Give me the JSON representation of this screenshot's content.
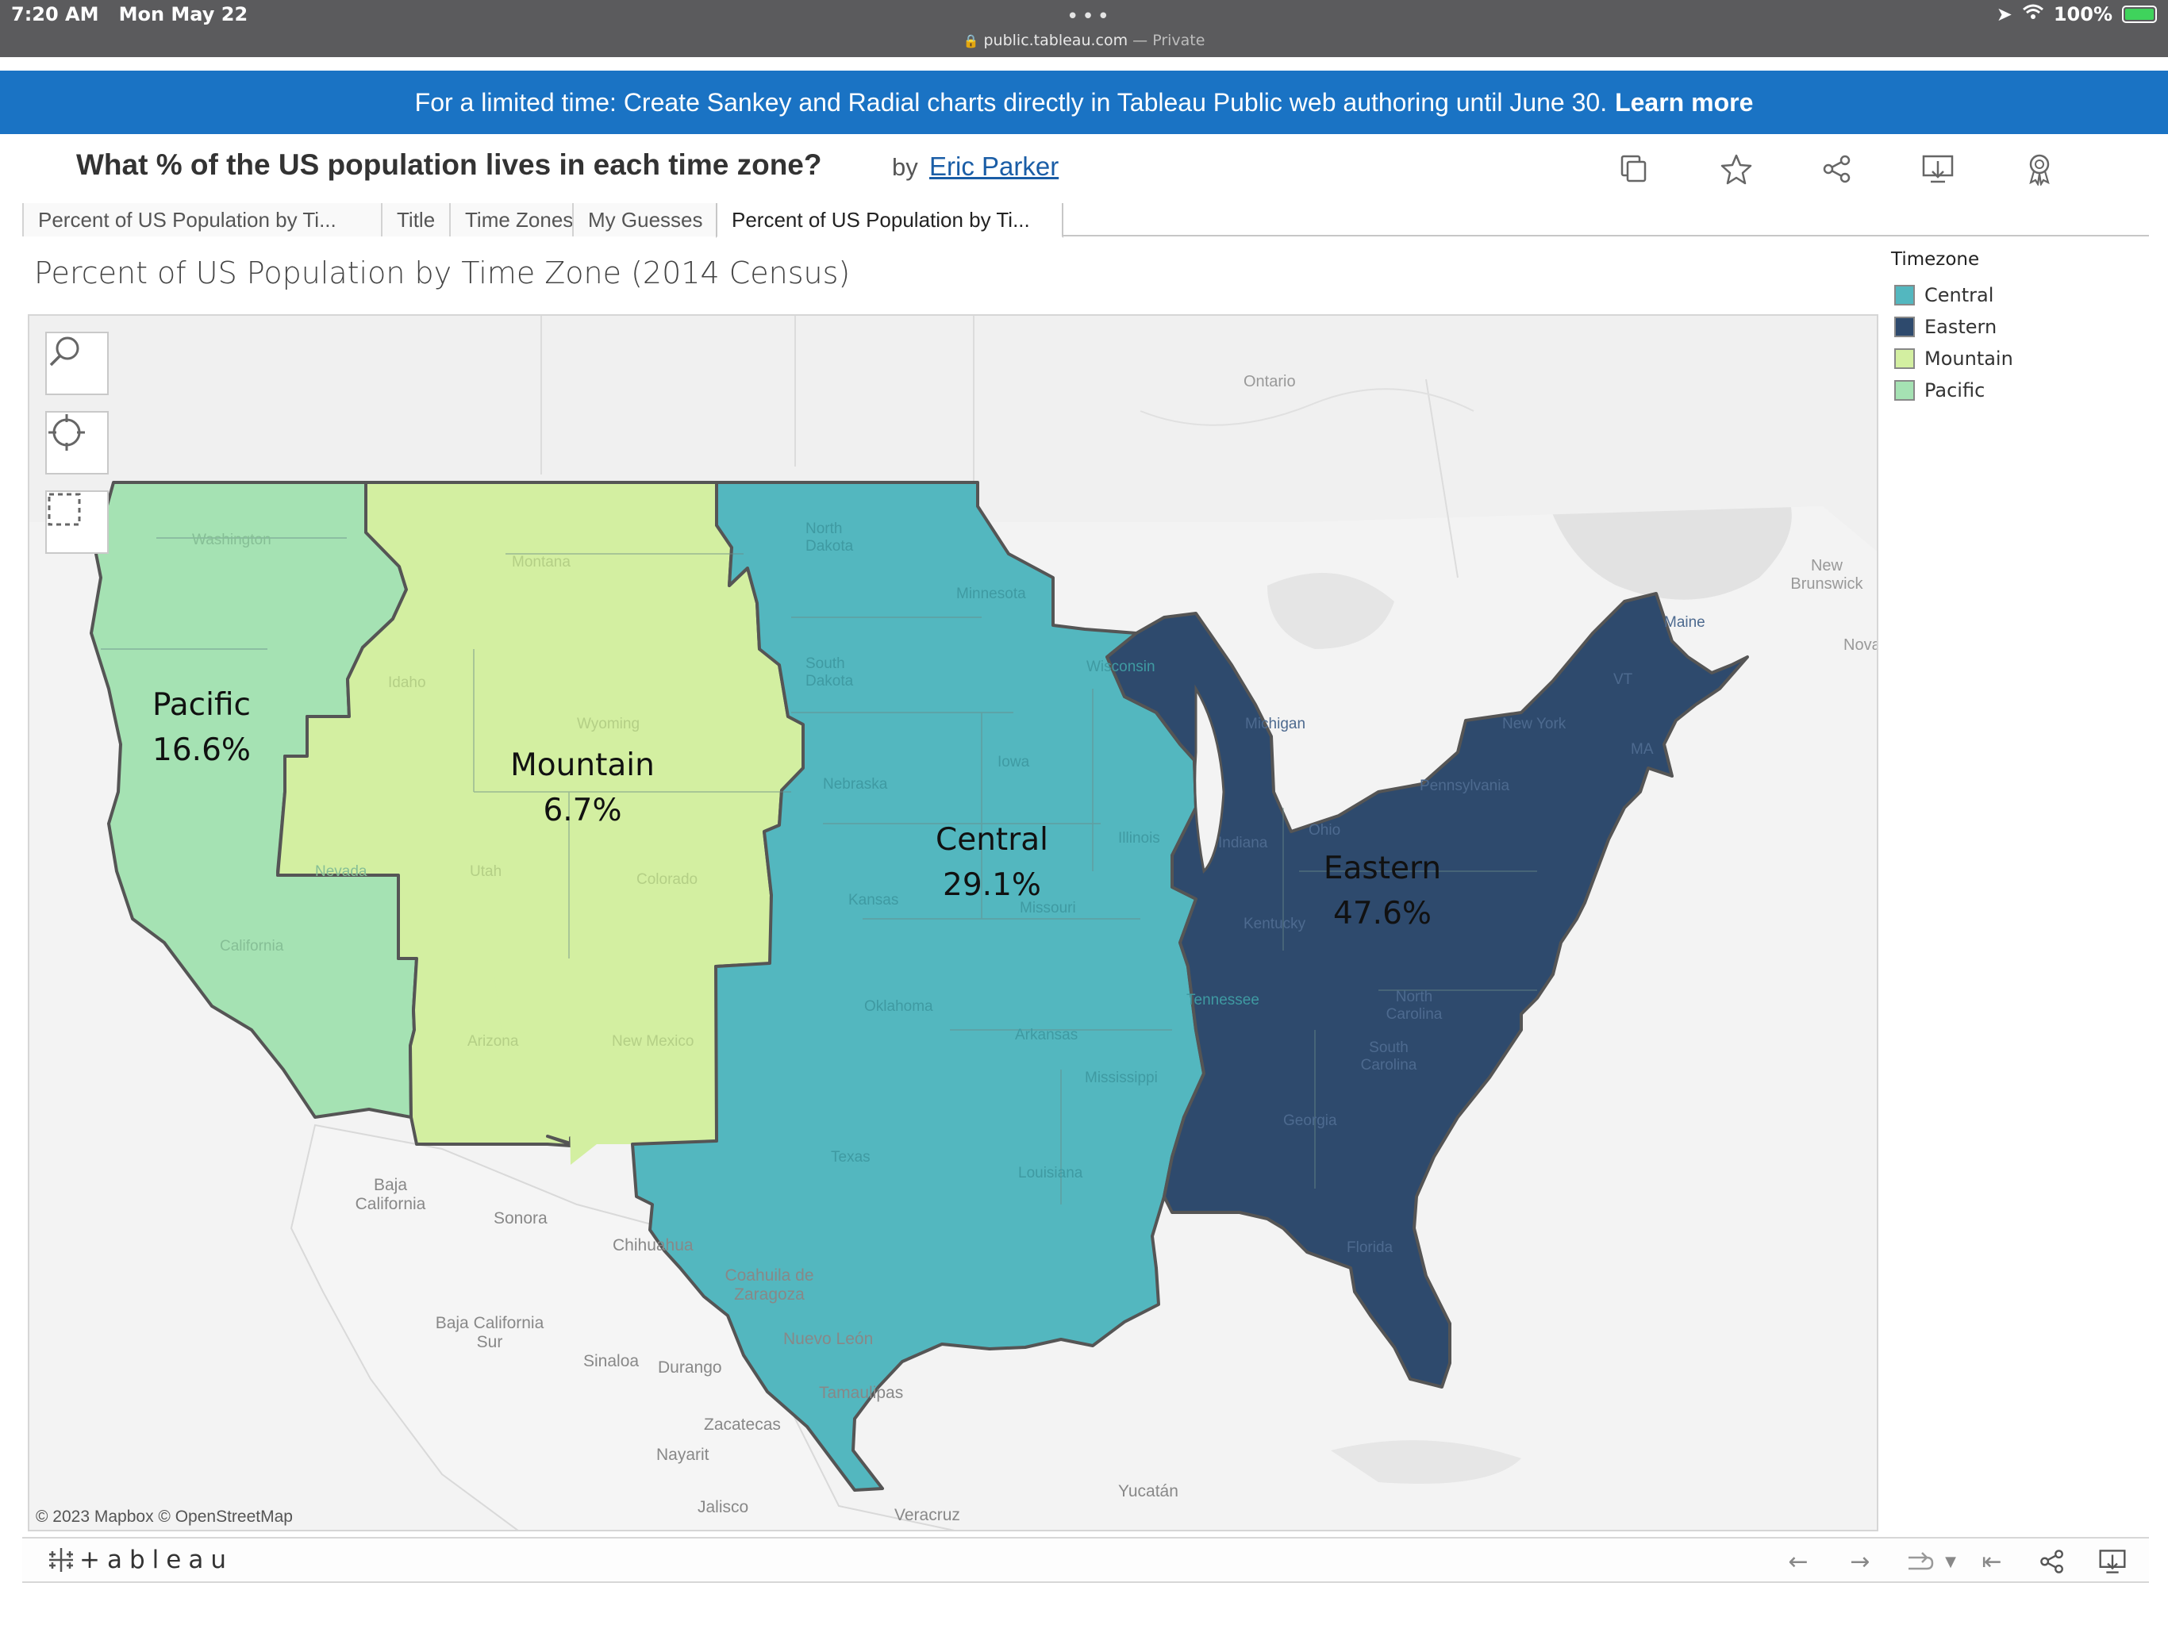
{
  "status_bar": {
    "time": "7:20 AM",
    "date": "Mon May 22",
    "url": "public.tableau.com",
    "browsing_mode": "— Private",
    "battery": "100%"
  },
  "banner": {
    "text": "For a limited time: Create Sankey and Radial charts directly in Tableau Public web authoring until June 30.",
    "link": "Learn more"
  },
  "viz": {
    "title": "What % of the US population lives in each time zone?",
    "by": "by",
    "author": "Eric Parker"
  },
  "tabs": [
    {
      "label": "Percent of US Population by Ti..."
    },
    {
      "label": "Title"
    },
    {
      "label": "Time Zones"
    },
    {
      "label": "My Guesses"
    },
    {
      "label": "Percent of US Population by Ti..."
    }
  ],
  "sheet": {
    "title": "Percent of US Population by Time Zone (2014 Census)"
  },
  "legend": {
    "title": "Timezone",
    "items": [
      {
        "label": "Central",
        "color": "#53b7bf"
      },
      {
        "label": "Eastern",
        "color": "#2e4a6d"
      },
      {
        "label": "Mountain",
        "color": "#d3efa1"
      },
      {
        "label": "Pacific",
        "color": "#a5e2b3"
      }
    ]
  },
  "zones": [
    {
      "name": "Pacific",
      "value": "16.6%",
      "color": "#a5e2b3"
    },
    {
      "name": "Mountain",
      "value": "6.7%",
      "color": "#d3efa1"
    },
    {
      "name": "Central",
      "value": "29.1%",
      "color": "#53b7bf"
    },
    {
      "name": "Eastern",
      "value": "47.6%",
      "color": "#2e4a6d"
    }
  ],
  "place_labels": [
    "Ontario",
    "New Brunswick",
    "Nova",
    "Baja California",
    "Sonora",
    "Chihuahua",
    "Coahuila de Zaragoza",
    "Baja California Sur",
    "Sinaloa",
    "Durango",
    "Nuevo León",
    "Tamaulipas",
    "Zacatecas",
    "Nayarit",
    "Jalisco",
    "Veracruz",
    "Yucatán"
  ],
  "state_labels": [
    "Washington",
    "Montana",
    "Idaho",
    "Wyoming",
    "Nevada",
    "Utah",
    "Colorado",
    "California",
    "Arizona",
    "New Mexico",
    "North Dakota",
    "South Dakota",
    "Minnesota",
    "Nebraska",
    "Iowa",
    "Kansas",
    "Missouri",
    "Oklahoma",
    "Arkansas",
    "Texas",
    "Louisiana",
    "Mississippi",
    "Tennessee",
    "Wisconsin",
    "Illinois",
    "Indiana",
    "Michigan",
    "Ohio",
    "Kentucky",
    "Pennsylvania",
    "New York",
    "North Carolina",
    "South Carolina",
    "Georgia",
    "Florida",
    "Maine",
    "VT",
    "MA"
  ],
  "map_credit": "© 2023 Mapbox  © OpenStreetMap",
  "map_tools": [
    "search-icon",
    "locate-icon",
    "select-icon"
  ],
  "footer": {
    "logo": "+ableau"
  }
}
